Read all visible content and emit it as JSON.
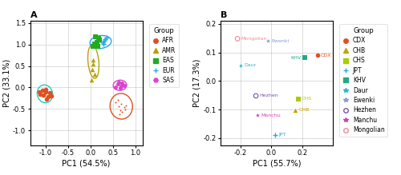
{
  "chart_data": [
    {
      "type": "scatter",
      "title": "A",
      "x_label": "PC1 (54.5%)",
      "y_label": "PC2 (33.1%)",
      "xlim": [
        -1.35,
        1.15
      ],
      "ylim": [
        -1.35,
        1.55
      ],
      "xticks": [
        -1.0,
        -0.5,
        0.0,
        0.5,
        1.0
      ],
      "yticks": [
        -1.0,
        -0.5,
        0.0,
        0.5,
        1.0,
        1.5
      ],
      "grid": true,
      "legend": "upper left",
      "legend_title": "Group",
      "series": [
        {
          "name": "AFR",
          "color": "#e05020",
          "marker": "circle",
          "x": [
            -1.05,
            -1.0,
            -0.95,
            -0.92,
            -1.08,
            -0.98,
            -1.12,
            -1.0,
            -0.88,
            -1.15
          ],
          "y": [
            -0.18,
            -0.1,
            -0.22,
            -0.12,
            -0.06,
            -0.28,
            -0.16,
            -0.05,
            -0.2,
            -0.1
          ]
        },
        {
          "name": "AMR",
          "color": "#b8a000",
          "marker": "triangle",
          "x": [
            0.04,
            0.06,
            0.08,
            0.02,
            0.05
          ],
          "y": [
            0.42,
            0.55,
            0.3,
            0.18,
            0.65
          ]
        },
        {
          "name": "EAS",
          "color": "#22aa22",
          "marker": "square",
          "x": [
            0.08,
            0.14,
            0.2,
            0.16,
            0.1,
            0.06,
            0.18
          ],
          "y": [
            1.02,
            1.06,
            1.1,
            0.96,
            1.18,
            0.95,
            1.14
          ]
        },
        {
          "name": "EUR",
          "color": "#22aaee",
          "marker": "plus",
          "x": [
            0.26,
            0.32,
            0.28,
            0.36,
            0.3
          ],
          "y": [
            1.06,
            1.12,
            1.02,
            1.16,
            1.08
          ]
        },
        {
          "name": "SAS",
          "color": "#dd44cc",
          "marker": "hexagon",
          "x": [
            0.6,
            0.68,
            0.66,
            0.74,
            0.63,
            0.56,
            0.7
          ],
          "y": [
            0.08,
            0.02,
            -0.02,
            0.05,
            0.12,
            0.01,
            0.1
          ]
        },
        {
          "color": "#e05020",
          "marker": "point",
          "x": [
            0.6,
            0.68,
            0.74,
            0.66,
            0.78,
            0.7,
            0.62,
            0.56,
            0.76,
            0.64
          ],
          "y": [
            -0.3,
            -0.38,
            -0.46,
            -0.54,
            -0.42,
            -0.58,
            -0.44,
            -0.34,
            -0.52,
            -0.62
          ]
        }
      ],
      "ellipses": [
        {
          "cx": -1.02,
          "cy": -0.15,
          "width": 0.34,
          "height": 0.42,
          "angle": 10,
          "color": "#20ccbb"
        },
        {
          "cx": 0.06,
          "cy": 0.6,
          "width": 0.24,
          "height": 0.78,
          "angle": 5,
          "color": "#b8a000"
        },
        {
          "cx": 0.22,
          "cy": 1.06,
          "width": 0.48,
          "height": 0.3,
          "angle": 8,
          "color": "#22aaee"
        },
        {
          "cx": 0.65,
          "cy": 0.05,
          "width": 0.3,
          "height": 0.24,
          "angle": 5,
          "color": "#dd44cc"
        },
        {
          "cx": 0.68,
          "cy": -0.44,
          "width": 0.5,
          "height": 0.6,
          "angle": 5,
          "color": "#e05020"
        }
      ]
    },
    {
      "type": "scatter",
      "title": "B",
      "x_label": "PC1 (55.7%)",
      "y_label": "PC2 (17.3%)",
      "xlim": [
        -0.33,
        0.4
      ],
      "ylim": [
        -0.225,
        0.21
      ],
      "xticks": [
        -0.2,
        0.0,
        0.2
      ],
      "yticks": [
        -0.2,
        -0.1,
        0.0,
        0.1,
        0.2
      ],
      "grid": true,
      "legend": "upper left",
      "legend_title": "Group",
      "series": [
        {
          "name": "CDX",
          "color": "#e05020",
          "marker": "circle",
          "x": [
            0.3
          ],
          "y": [
            0.09
          ]
        },
        {
          "name": "CHB",
          "color": "#c8a000",
          "marker": "triangle",
          "x": [
            0.155
          ],
          "y": [
            -0.102
          ]
        },
        {
          "name": "CHS",
          "color": "#aacc00",
          "marker": "square",
          "x": [
            0.175
          ],
          "y": [
            -0.063
          ]
        },
        {
          "name": "JPT",
          "color": "#22aaee",
          "marker": "plus",
          "x": [
            0.025
          ],
          "y": [
            -0.188
          ]
        },
        {
          "name": "KHV",
          "color": "#22aa88",
          "marker": "square",
          "x": [
            0.215
          ],
          "y": [
            0.082
          ]
        },
        {
          "name": "Daur",
          "color": "#22bbcc",
          "marker": "star",
          "x": [
            -0.2
          ],
          "y": [
            0.055
          ]
        },
        {
          "name": "Ewenki",
          "color": "#8899dd",
          "marker": "star",
          "x": [
            -0.02
          ],
          "y": [
            0.14
          ]
        },
        {
          "name": "Hezhen",
          "color": "#7755aa",
          "marker": "ring",
          "x": [
            -0.1
          ],
          "y": [
            -0.052
          ]
        },
        {
          "name": "Manchu",
          "color": "#cc44aa",
          "marker": "star",
          "x": [
            -0.09
          ],
          "y": [
            -0.12
          ]
        },
        {
          "name": "Mongolian",
          "color": "#ee8899",
          "marker": "ring",
          "x": [
            -0.22
          ],
          "y": [
            0.148
          ]
        }
      ],
      "annotations": [
        {
          "text": "CDX",
          "x": 0.3,
          "y": 0.09
        },
        {
          "text": "CHB",
          "x": 0.155,
          "y": -0.102
        },
        {
          "text": "CHS",
          "x": 0.175,
          "y": -0.063
        },
        {
          "text": "JPT",
          "x": 0.025,
          "y": -0.188
        },
        {
          "text": "KHV",
          "x": 0.215,
          "y": 0.082
        },
        {
          "text": "Daur",
          "x": -0.2,
          "y": 0.055
        },
        {
          "text": "Ewenki",
          "x": -0.02,
          "y": 0.14
        },
        {
          "text": "Hezhen",
          "x": -0.1,
          "y": -0.052
        },
        {
          "text": "Manchu",
          "x": -0.09,
          "y": -0.12
        },
        {
          "text": "Mongolian",
          "x": -0.22,
          "y": 0.148
        }
      ]
    }
  ]
}
